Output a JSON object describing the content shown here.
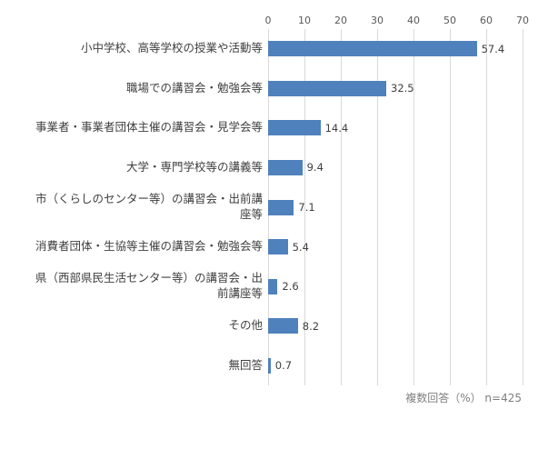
{
  "chart_data": {
    "type": "bar",
    "orientation": "horizontal",
    "title": "",
    "xlabel": "",
    "ylabel": "",
    "xlim": [
      0,
      70
    ],
    "xticks": [
      0,
      10,
      20,
      30,
      40,
      50,
      60,
      70
    ],
    "grid": true,
    "bar_color": "#4F81BD",
    "categories": [
      "小中学校、高等学校の授業や活動等",
      "職場での講習会・勉強会等",
      "事業者・事業者団体主催の講習会・見学会等",
      "大学・専門学校等の講義等",
      "市（くらしのセンター等）の講習会・出前講座等",
      "消費者団体・生協等主催の講習会・勉強会等",
      "県（西部県民生活センター等）の講習会・出前講座等",
      "その他",
      "無回答"
    ],
    "values": [
      57.4,
      32.5,
      14.4,
      9.4,
      7.1,
      5.4,
      2.6,
      8.2,
      0.7
    ],
    "value_labels": [
      "57.4",
      "32.5",
      "14.4",
      "9.4",
      "7.1",
      "5.4",
      "2.6",
      "8.2",
      "0.7"
    ],
    "note": "複数回答（%） n=425"
  }
}
